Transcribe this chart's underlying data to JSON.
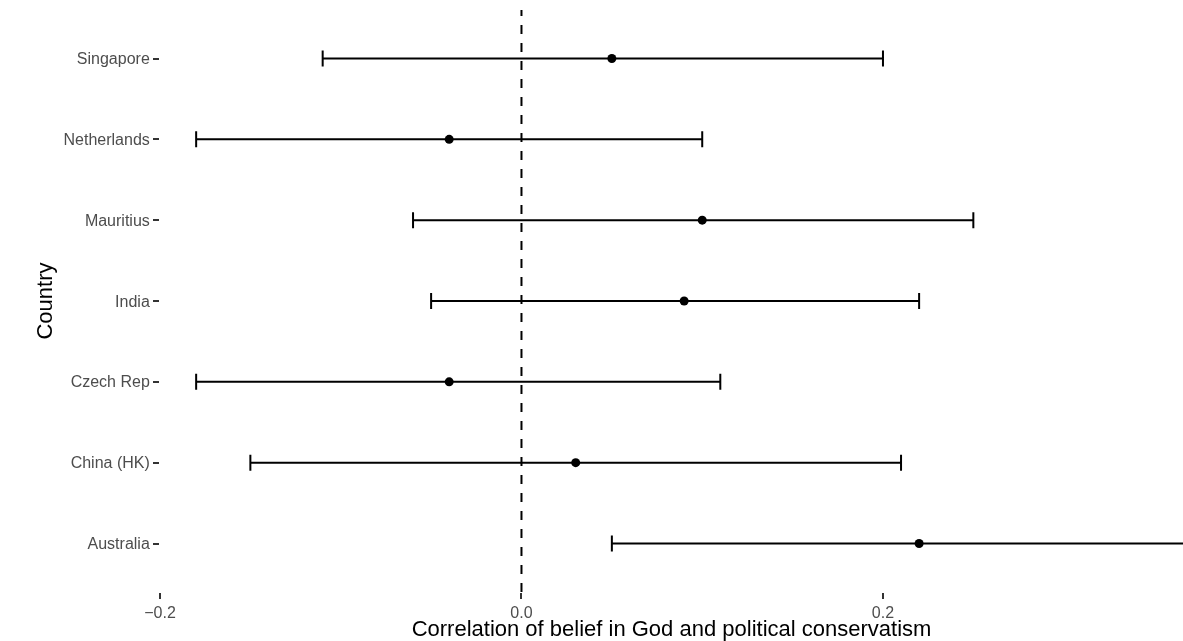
{
  "chart_data": {
    "type": "scatter",
    "orientation": "horizontal",
    "xlabel": "Correlation of belief in God and political conservatism",
    "ylabel": "Country",
    "categories": [
      "Singapore",
      "Netherlands",
      "Mauritius",
      "India",
      "Czech Rep",
      "China (HK)",
      "Australia"
    ],
    "values": [
      0.05,
      -0.04,
      0.1,
      0.09,
      -0.04,
      0.03,
      0.22
    ],
    "errors": [
      [
        -0.11,
        0.2
      ],
      [
        -0.18,
        0.1
      ],
      [
        -0.06,
        0.25
      ],
      [
        -0.05,
        0.22
      ],
      [
        -0.18,
        0.11
      ],
      [
        -0.15,
        0.21
      ],
      [
        0.05,
        0.37
      ]
    ],
    "color": "#000000",
    "marker": "circle",
    "xlim": [
      -0.2,
      0.366
    ],
    "xticks": [
      {
        "value": -0.2,
        "label": "−0.2"
      },
      "0.0",
      0.2
    ],
    "ref_lines": [
      {
        "axis": "x",
        "value": 0,
        "line_style": "dashed",
        "color": "#000000"
      }
    ],
    "legend": false
  }
}
